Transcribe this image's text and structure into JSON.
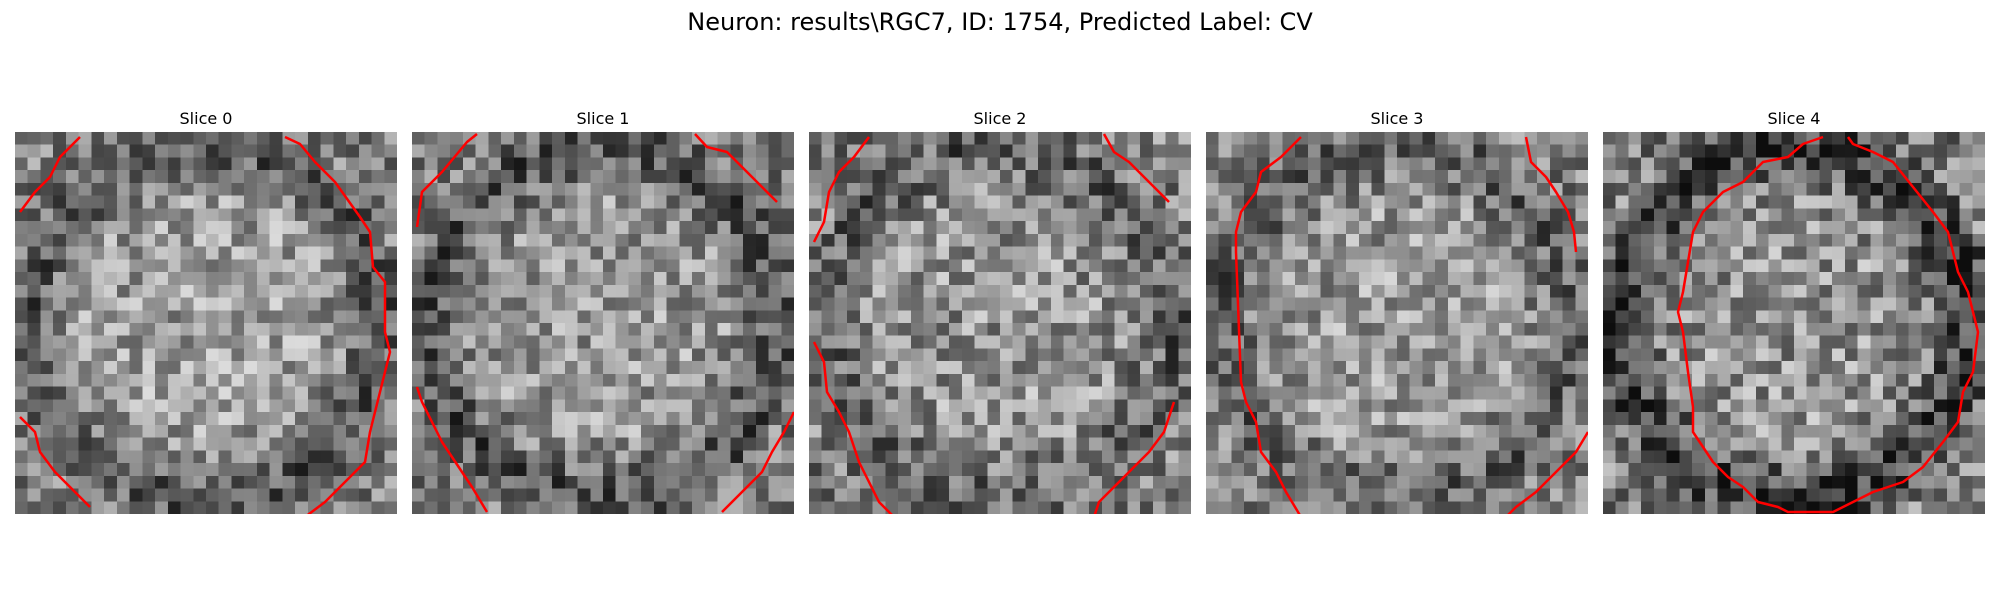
{
  "figure": {
    "title": "Neuron: results\\RGC7, ID: 1754, Predicted Label: CV"
  },
  "colors": {
    "contour": "#ff0000"
  },
  "slices": [
    {
      "title": "Slice 0"
    },
    {
      "title": "Slice 1"
    },
    {
      "title": "Slice 2"
    },
    {
      "title": "Slice 3"
    },
    {
      "title": "Slice 4"
    }
  ]
}
